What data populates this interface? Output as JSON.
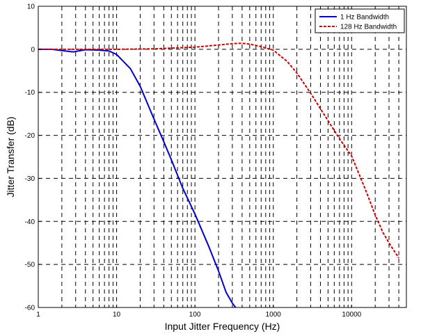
{
  "chart_data": {
    "type": "line",
    "xlabel": "Input Jitter Frequency (Hz)",
    "ylabel": "Jitter Transfer (dB)",
    "xscale": "log",
    "xlim": [
      1,
      50000
    ],
    "ylim": [
      -60,
      10
    ],
    "grid": true,
    "legend_position": "top-right",
    "x_ticks": [
      {
        "value": 1,
        "label": "1"
      },
      {
        "value": 10,
        "label": "10"
      },
      {
        "value": 100,
        "label": "100"
      },
      {
        "value": 1000,
        "label": "1000"
      },
      {
        "value": 10000,
        "label": "10000"
      }
    ],
    "y_ticks": [
      {
        "value": 10,
        "label": "10"
      },
      {
        "value": 0,
        "label": "0"
      },
      {
        "value": -10,
        "label": "-10"
      },
      {
        "value": -20,
        "label": "-20"
      },
      {
        "value": -30,
        "label": "-30"
      },
      {
        "value": -40,
        "label": "-40"
      },
      {
        "value": -50,
        "label": "-50"
      },
      {
        "value": -60,
        "label": "-60"
      }
    ],
    "series": [
      {
        "name": "1 Hz Bandwidth",
        "color": "#0000cc",
        "style": "solid",
        "x": [
          1,
          1.5,
          2,
          2.8,
          4,
          6,
          8,
          10,
          15,
          20,
          30,
          40,
          50,
          70,
          100,
          150,
          200,
          250,
          300,
          330
        ],
        "y": [
          0,
          0,
          -0.3,
          -0.6,
          -0.1,
          -0.2,
          -0.4,
          -1.2,
          -4.5,
          -8.6,
          -16.2,
          -21.5,
          -25.7,
          -32.3,
          -38.3,
          -45.8,
          -51.5,
          -56.5,
          -59,
          -60
        ]
      },
      {
        "name": "128 Hz Bandwidth",
        "color": "#cc0000",
        "style": "dashed",
        "x": [
          1,
          10,
          30,
          100,
          200,
          300,
          400,
          500,
          700,
          1000,
          1500,
          2000,
          3000,
          5000,
          7000,
          10000,
          15000,
          20000,
          25000,
          30000,
          40000
        ],
        "y": [
          0,
          0,
          0.1,
          0.5,
          1.0,
          1.3,
          1.4,
          1.2,
          0.6,
          -0.2,
          -2.8,
          -5.5,
          -10.2,
          -16.6,
          -20.8,
          -24.8,
          -32.6,
          -38.5,
          -42.5,
          -45,
          -48.5
        ]
      }
    ]
  }
}
